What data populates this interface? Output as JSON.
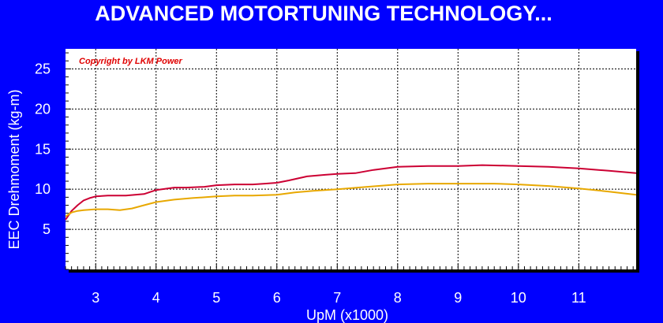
{
  "page": {
    "title": "ADVANCED MOTORTUNING TECHNOLOGY..."
  },
  "colors": {
    "background": "#0000FF",
    "plot_area": "#FFFFFF",
    "series_1": "#CC0033",
    "series_2": "#E8A800",
    "copyright": "#E00000",
    "text": "#FFFFFF"
  },
  "chart_data": {
    "type": "line",
    "title": "",
    "annotation": "Copyright by LKM Power",
    "xlabel": "UpM (x1000)",
    "ylabel": "EEC Drehmoment (kg-m)",
    "xlim": [
      2.5,
      11.95
    ],
    "ylim": [
      0,
      27.5
    ],
    "x_ticks": [
      3,
      4,
      5,
      6,
      7,
      8,
      9,
      10,
      11
    ],
    "y_ticks": [
      5,
      10,
      15,
      20,
      25
    ],
    "grid": true,
    "legend": "none",
    "series": [
      {
        "color": "#CC0033",
        "points": [
          [
            2.5,
            6.2
          ],
          [
            2.6,
            7.3
          ],
          [
            2.7,
            8.0
          ],
          [
            2.8,
            8.6
          ],
          [
            2.9,
            8.9
          ],
          [
            3.0,
            9.1
          ],
          [
            3.2,
            9.2
          ],
          [
            3.5,
            9.2
          ],
          [
            3.8,
            9.4
          ],
          [
            4.0,
            9.9
          ],
          [
            4.3,
            10.2
          ],
          [
            4.5,
            10.2
          ],
          [
            4.8,
            10.3
          ],
          [
            5.0,
            10.5
          ],
          [
            5.3,
            10.6
          ],
          [
            5.6,
            10.6
          ],
          [
            5.8,
            10.7
          ],
          [
            6.0,
            10.8
          ],
          [
            6.2,
            11.1
          ],
          [
            6.5,
            11.6
          ],
          [
            6.8,
            11.8
          ],
          [
            7.0,
            11.9
          ],
          [
            7.3,
            12.0
          ],
          [
            7.6,
            12.4
          ],
          [
            8.0,
            12.8
          ],
          [
            8.5,
            12.9
          ],
          [
            9.0,
            12.9
          ],
          [
            9.4,
            13.0
          ],
          [
            10.0,
            12.9
          ],
          [
            10.5,
            12.8
          ],
          [
            11.0,
            12.6
          ],
          [
            11.5,
            12.3
          ],
          [
            11.95,
            12.0
          ]
        ]
      },
      {
        "color": "#E8A800",
        "points": [
          [
            2.5,
            6.6
          ],
          [
            2.6,
            7.1
          ],
          [
            2.7,
            7.3
          ],
          [
            2.8,
            7.4
          ],
          [
            3.0,
            7.5
          ],
          [
            3.2,
            7.5
          ],
          [
            3.4,
            7.4
          ],
          [
            3.6,
            7.6
          ],
          [
            3.8,
            8.0
          ],
          [
            4.0,
            8.4
          ],
          [
            4.3,
            8.7
          ],
          [
            4.6,
            8.9
          ],
          [
            5.0,
            9.1
          ],
          [
            5.3,
            9.2
          ],
          [
            5.6,
            9.2
          ],
          [
            6.0,
            9.3
          ],
          [
            6.3,
            9.6
          ],
          [
            6.6,
            9.8
          ],
          [
            7.0,
            10.0
          ],
          [
            7.5,
            10.3
          ],
          [
            8.0,
            10.6
          ],
          [
            8.5,
            10.7
          ],
          [
            9.0,
            10.7
          ],
          [
            9.6,
            10.7
          ],
          [
            10.0,
            10.6
          ],
          [
            10.5,
            10.4
          ],
          [
            11.0,
            10.1
          ],
          [
            11.5,
            9.7
          ],
          [
            11.95,
            9.3
          ]
        ]
      }
    ]
  }
}
